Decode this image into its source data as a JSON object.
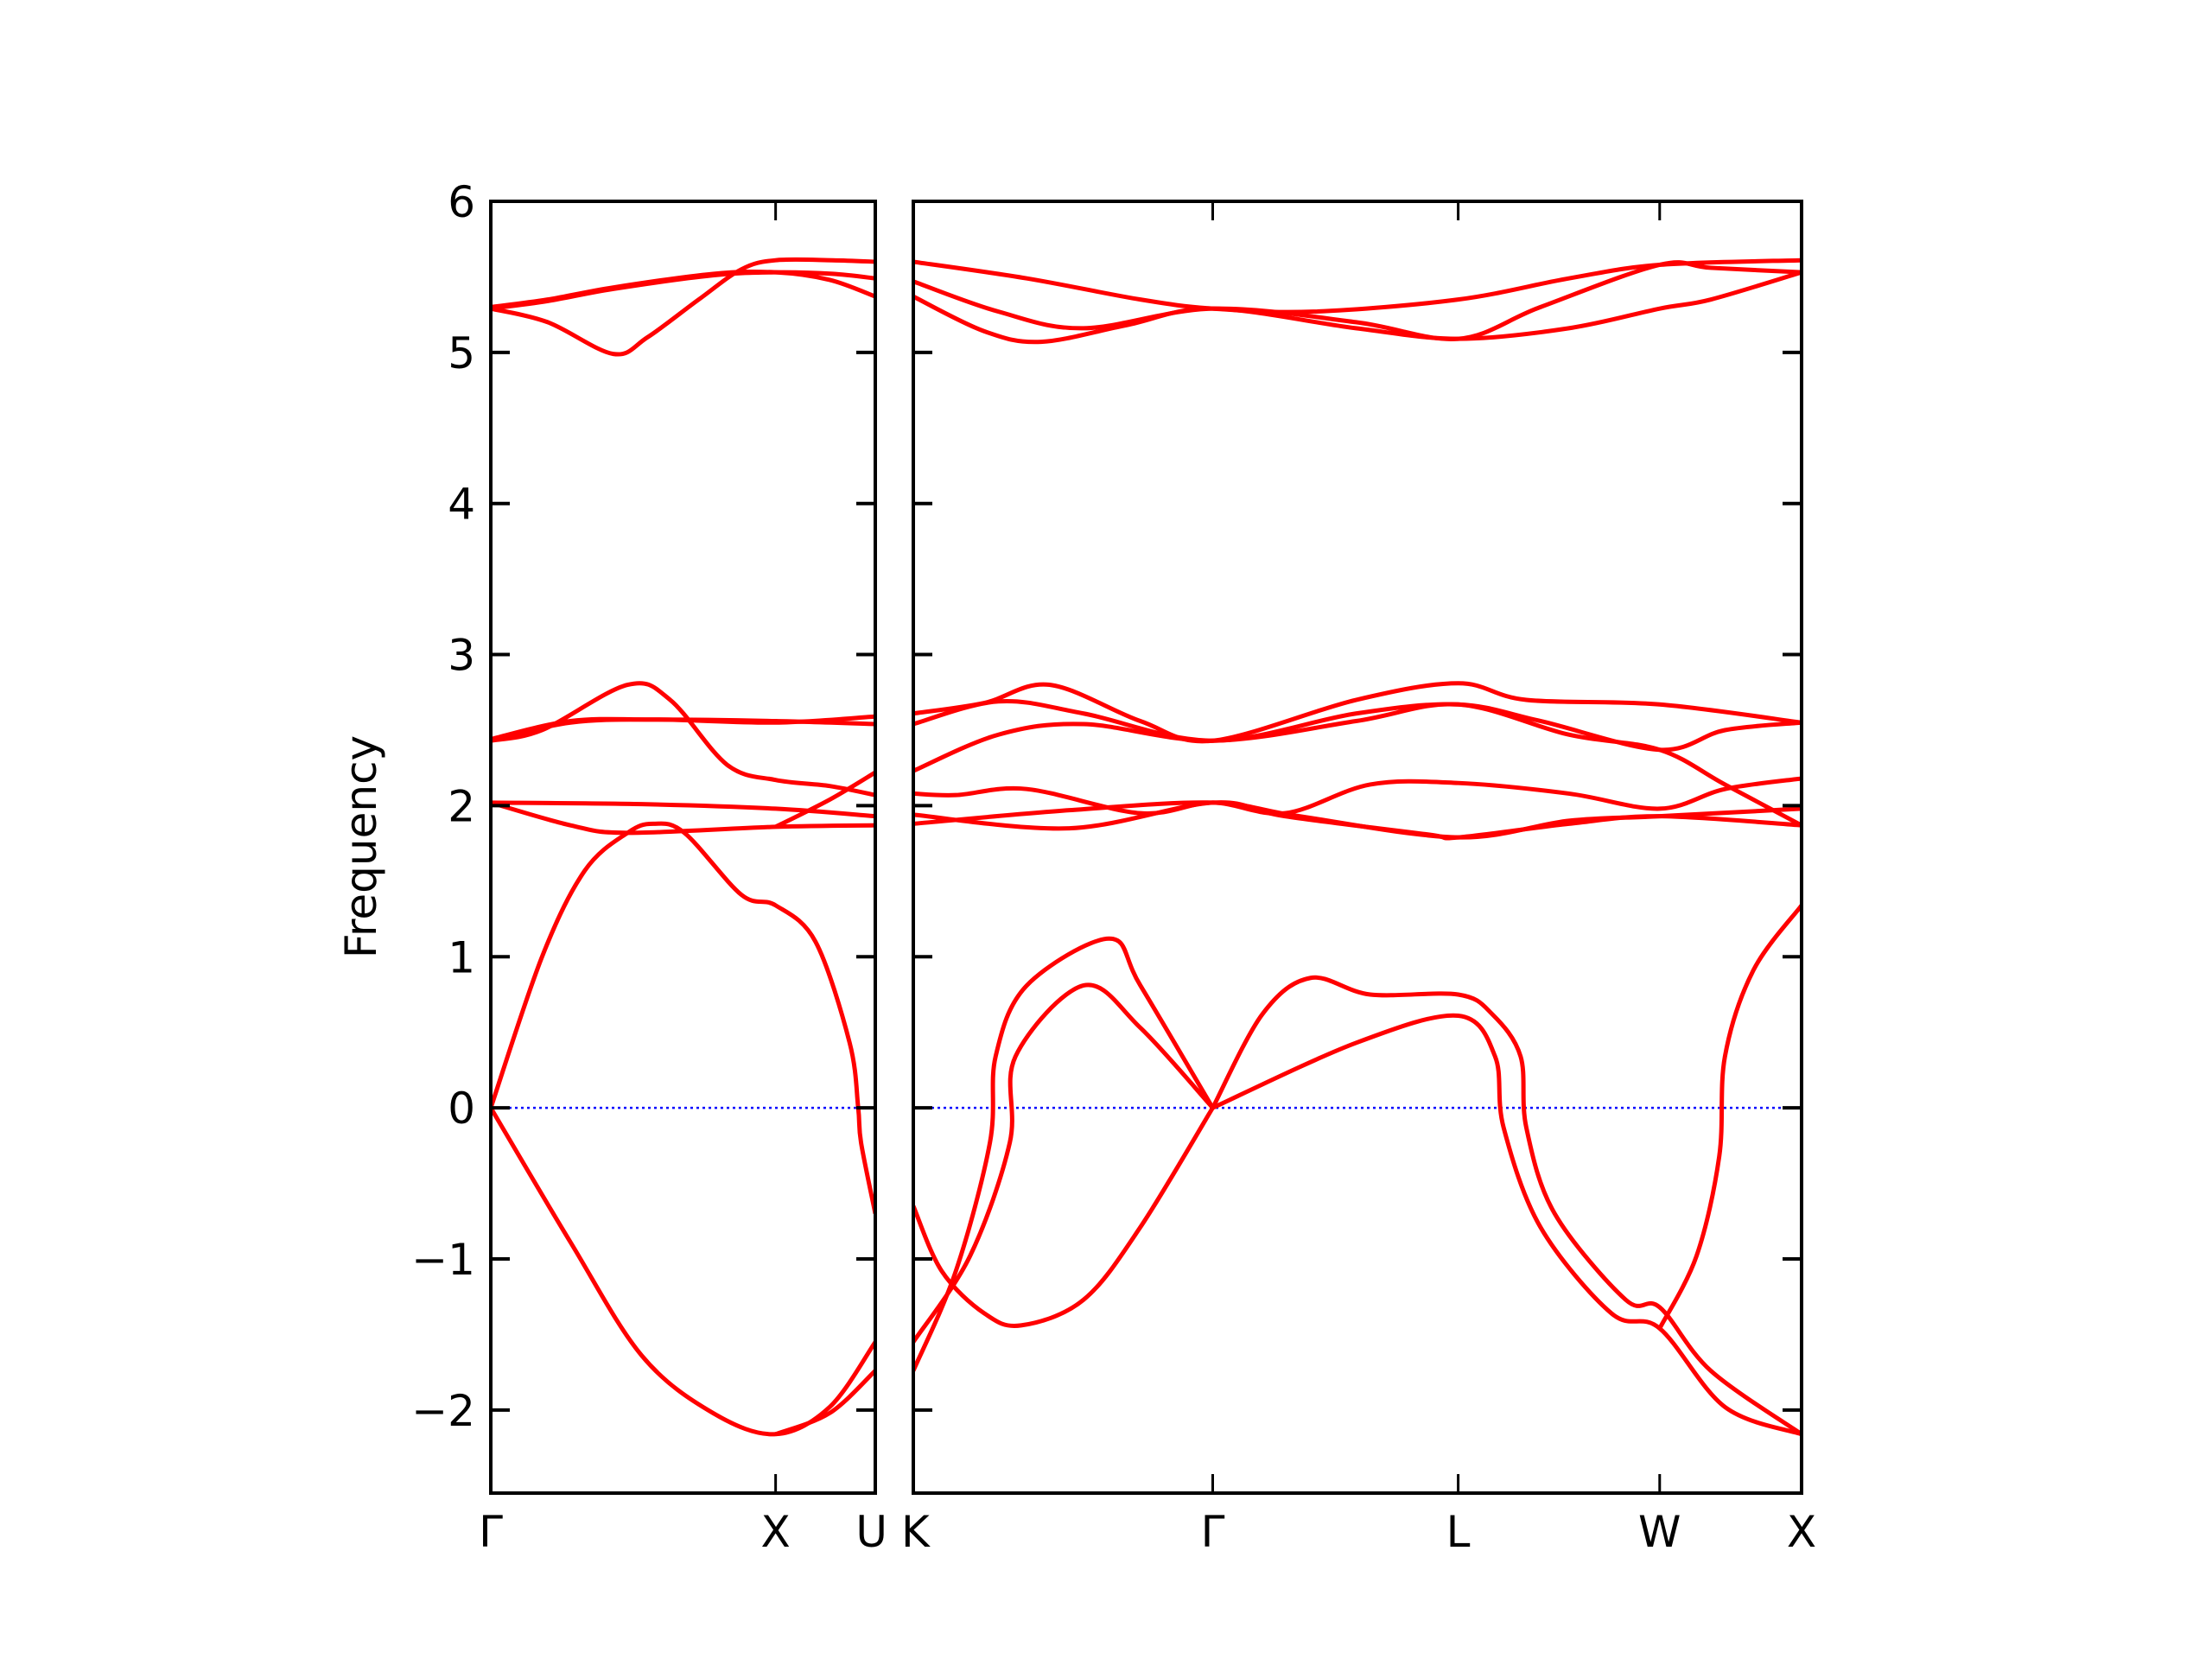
{
  "chart_data": {
    "type": "line",
    "title": "",
    "xlabel": "",
    "ylabel": "Frequency",
    "ylim": [
      -2.55,
      6
    ],
    "yticks": [
      -2,
      -1,
      0,
      1,
      2,
      3,
      4,
      5,
      6
    ],
    "ytick_labels": [
      "−2",
      "−1",
      "0",
      "1",
      "2",
      "3",
      "4",
      "5",
      "6"
    ],
    "grid": false,
    "band_color": "#ff0000",
    "zero_line_color": "#0000ff",
    "panels": [
      {
        "name": "left",
        "xlim": [
          0,
          1.35
        ],
        "xticks": [
          {
            "k": 0,
            "label": "Γ"
          },
          {
            "k": 1,
            "label": "X"
          },
          {
            "k": 1.35,
            "label": "U"
          }
        ],
        "bands": [
          [
            [
              0,
              5.29
            ],
            [
              0.2,
              5.2
            ],
            [
              0.43,
              4.99
            ],
            [
              0.55,
              5.1
            ],
            [
              0.73,
              5.35
            ],
            [
              0.88,
              5.55
            ],
            [
              1,
              5.61
            ],
            [
              1.2,
              5.61
            ],
            [
              1.35,
              5.6
            ]
          ],
          [
            [
              0,
              5.29
            ],
            [
              0.2,
              5.34
            ],
            [
              0.43,
              5.42
            ],
            [
              0.78,
              5.51
            ],
            [
              1,
              5.53
            ],
            [
              1.2,
              5.52
            ],
            [
              1.35,
              5.49
            ]
          ],
          [
            [
              0,
              5.3
            ],
            [
              0.2,
              5.35
            ],
            [
              0.43,
              5.43
            ],
            [
              0.78,
              5.52
            ],
            [
              1,
              5.53
            ],
            [
              1.19,
              5.48
            ],
            [
              1.35,
              5.37
            ]
          ],
          [
            [
              0,
              2.43
            ],
            [
              0.18,
              2.5
            ],
            [
              0.48,
              2.8
            ],
            [
              0.63,
              2.7
            ],
            [
              0.83,
              2.27
            ],
            [
              1,
              2.17
            ],
            [
              1.19,
              2.13
            ],
            [
              1.35,
              2.07
            ]
          ],
          [
            [
              0,
              2.43
            ],
            [
              0.28,
              2.55
            ],
            [
              0.58,
              2.57
            ],
            [
              1,
              2.55
            ],
            [
              1.35,
              2.59
            ]
          ],
          [
            [
              0,
              2.44
            ],
            [
              0.28,
              2.56
            ],
            [
              0.58,
              2.57
            ],
            [
              1,
              2.56
            ],
            [
              1.35,
              2.54
            ]
          ],
          [
            [
              1,
              1.86
            ],
            [
              1.19,
              2.04
            ],
            [
              1.35,
              2.22
            ]
          ],
          [
            [
              0,
              2.02
            ],
            [
              0.53,
              2.01
            ],
            [
              1,
              1.98
            ],
            [
              1.35,
              1.93
            ]
          ],
          [
            [
              0,
              2.02
            ],
            [
              0.28,
              1.87
            ],
            [
              0.48,
              1.82
            ],
            [
              1,
              1.86
            ],
            [
              1.35,
              1.87
            ]
          ],
          [
            [
              0,
              0
            ],
            [
              0.18,
              1.0
            ],
            [
              0.33,
              1.57
            ],
            [
              0.48,
              1.82
            ],
            [
              0.57,
              1.88
            ],
            [
              0.68,
              1.82
            ],
            [
              0.88,
              1.41
            ],
            [
              1,
              1.34
            ],
            [
              1.14,
              1.1
            ],
            [
              1.26,
              0.43
            ],
            [
              1.29,
              0
            ],
            [
              1.3,
              -0.23
            ],
            [
              1.35,
              -0.7
            ]
          ],
          [
            [
              0,
              0
            ],
            [
              0.28,
              -0.89
            ],
            [
              0.53,
              -1.64
            ],
            [
              0.78,
              -2.02
            ],
            [
              1,
              -2.16
            ],
            [
              1.19,
              -1.98
            ],
            [
              1.35,
              -1.55
            ]
          ],
          [
            [
              1,
              -2.16
            ],
            [
              1.19,
              -2.02
            ],
            [
              1.35,
              -1.74
            ]
          ]
        ]
      },
      {
        "name": "right",
        "xlim": [
          0,
          3.13
        ],
        "xticks": [
          {
            "k": 0,
            "label": "K"
          },
          {
            "k": 1.055,
            "label": "Γ"
          },
          {
            "k": 1.92,
            "label": "L"
          },
          {
            "k": 2.63,
            "label": "W"
          },
          {
            "k": 3.13,
            "label": "X"
          }
        ],
        "bands": [
          [
            [
              0,
              5.6
            ],
            [
              0.4,
              5.49
            ],
            [
              0.8,
              5.35
            ],
            [
              1.055,
              5.29
            ],
            [
              1.41,
              5.27
            ],
            [
              1.92,
              5.35
            ],
            [
              2.31,
              5.49
            ],
            [
              2.63,
              5.58
            ],
            [
              3.13,
              5.61
            ]
          ],
          [
            [
              0,
              5.47
            ],
            [
              0.3,
              5.27
            ],
            [
              0.6,
              5.16
            ],
            [
              1.055,
              5.29
            ],
            [
              1.56,
              5.2
            ],
            [
              1.92,
              5.09
            ],
            [
              2.21,
              5.3
            ],
            [
              2.63,
              5.58
            ],
            [
              2.81,
              5.56
            ],
            [
              3.13,
              5.53
            ]
          ],
          [
            [
              0,
              5.37
            ],
            [
              0.25,
              5.14
            ],
            [
              0.45,
              5.07
            ],
            [
              0.75,
              5.18
            ],
            [
              1.055,
              5.29
            ],
            [
              1.56,
              5.16
            ],
            [
              1.92,
              5.09
            ],
            [
              2.31,
              5.16
            ],
            [
              2.63,
              5.29
            ],
            [
              2.81,
              5.35
            ],
            [
              3.13,
              5.53
            ]
          ],
          [
            [
              0,
              2.61
            ],
            [
              0.25,
              2.68
            ],
            [
              0.48,
              2.8
            ],
            [
              0.8,
              2.56
            ],
            [
              1.055,
              2.43
            ],
            [
              1.56,
              2.7
            ],
            [
              1.92,
              2.81
            ],
            [
              2.16,
              2.7
            ],
            [
              2.63,
              2.67
            ],
            [
              3.13,
              2.55
            ]
          ],
          [
            [
              0,
              2.54
            ],
            [
              0.3,
              2.69
            ],
            [
              0.6,
              2.61
            ],
            [
              1.055,
              2.43
            ],
            [
              1.56,
              2.61
            ],
            [
              1.92,
              2.67
            ],
            [
              2.21,
              2.56
            ],
            [
              2.63,
              2.37
            ],
            [
              2.86,
              2.5
            ],
            [
              3.13,
              2.55
            ]
          ],
          [
            [
              0,
              2.23
            ],
            [
              0.3,
              2.47
            ],
            [
              0.6,
              2.54
            ],
            [
              1.055,
              2.43
            ],
            [
              1.56,
              2.56
            ],
            [
              1.92,
              2.67
            ],
            [
              2.31,
              2.47
            ],
            [
              2.63,
              2.37
            ],
            [
              2.86,
              2.14
            ],
            [
              3.13,
              1.87
            ]
          ],
          [
            [
              0,
              2.08
            ],
            [
              0.15,
              2.07
            ],
            [
              0.4,
              2.11
            ],
            [
              0.8,
              1.95
            ],
            [
              1.055,
              2.02
            ],
            [
              1.31,
              1.95
            ],
            [
              1.61,
              2.14
            ],
            [
              1.92,
              2.15
            ],
            [
              2.31,
              2.08
            ],
            [
              2.63,
              1.98
            ],
            [
              2.86,
              2.11
            ],
            [
              3.13,
              2.18
            ]
          ],
          [
            [
              0,
              1.88
            ],
            [
              0.55,
              1.97
            ],
            [
              1.055,
              2.02
            ],
            [
              1.36,
              1.93
            ],
            [
              1.92,
              1.79
            ],
            [
              2.31,
              1.9
            ],
            [
              2.63,
              1.93
            ],
            [
              3.13,
              1.98
            ]
          ],
          [
            [
              0,
              1.94
            ],
            [
              0.55,
              1.85
            ],
            [
              1.055,
              2.02
            ],
            [
              1.31,
              1.93
            ],
            [
              1.81,
              1.81
            ],
            [
              1.92,
              1.79
            ],
            [
              2.31,
              1.88
            ],
            [
              2.63,
              1.93
            ],
            [
              3.13,
              1.87
            ]
          ],
          [
            [
              0,
              -0.65
            ],
            [
              0.1,
              -1.08
            ],
            [
              0.25,
              -1.36
            ],
            [
              0.38,
              -1.44
            ],
            [
              0.6,
              -1.27
            ],
            [
              0.8,
              -0.79
            ],
            [
              1.055,
              0
            ]
          ],
          [
            [
              0,
              -1.74
            ],
            [
              0.15,
              -1.08
            ],
            [
              0.27,
              -0.23
            ],
            [
              0.29,
              0.34
            ],
            [
              0.4,
              0.81
            ],
            [
              0.69,
              1.12
            ],
            [
              0.8,
              0.81
            ],
            [
              1.055,
              0
            ]
          ],
          [
            [
              0,
              -1.55
            ],
            [
              0.2,
              -0.98
            ],
            [
              0.34,
              -0.23
            ],
            [
              0.36,
              0.34
            ],
            [
              0.6,
              0.81
            ],
            [
              0.8,
              0.53
            ],
            [
              1.055,
              0
            ]
          ],
          [
            [
              1.055,
              0
            ],
            [
              1.23,
              0.62
            ],
            [
              1.4,
              0.86
            ],
            [
              1.61,
              0.75
            ],
            [
              1.92,
              0.75
            ],
            [
              2.04,
              0.62
            ],
            [
              2.14,
              0.34
            ],
            [
              2.16,
              -0.13
            ],
            [
              2.26,
              -0.7
            ],
            [
              2.51,
              -1.27
            ],
            [
              2.63,
              -1.32
            ],
            [
              2.81,
              -1.74
            ],
            [
              3.13,
              -2.16
            ]
          ],
          [
            [
              1.055,
              0
            ],
            [
              1.56,
              0.43
            ],
            [
              1.92,
              0.61
            ],
            [
              2.05,
              0.34
            ],
            [
              2.08,
              -0.13
            ],
            [
              2.21,
              -0.79
            ],
            [
              2.46,
              -1.36
            ],
            [
              2.63,
              -1.46
            ],
            [
              2.86,
              -1.98
            ],
            [
              3.13,
              -2.16
            ]
          ],
          [
            [
              2.63,
              -1.46
            ],
            [
              2.76,
              -0.98
            ],
            [
              2.84,
              -0.32
            ],
            [
              2.86,
              0.34
            ],
            [
              2.96,
              0.91
            ],
            [
              3.13,
              1.34
            ]
          ]
        ]
      }
    ]
  }
}
